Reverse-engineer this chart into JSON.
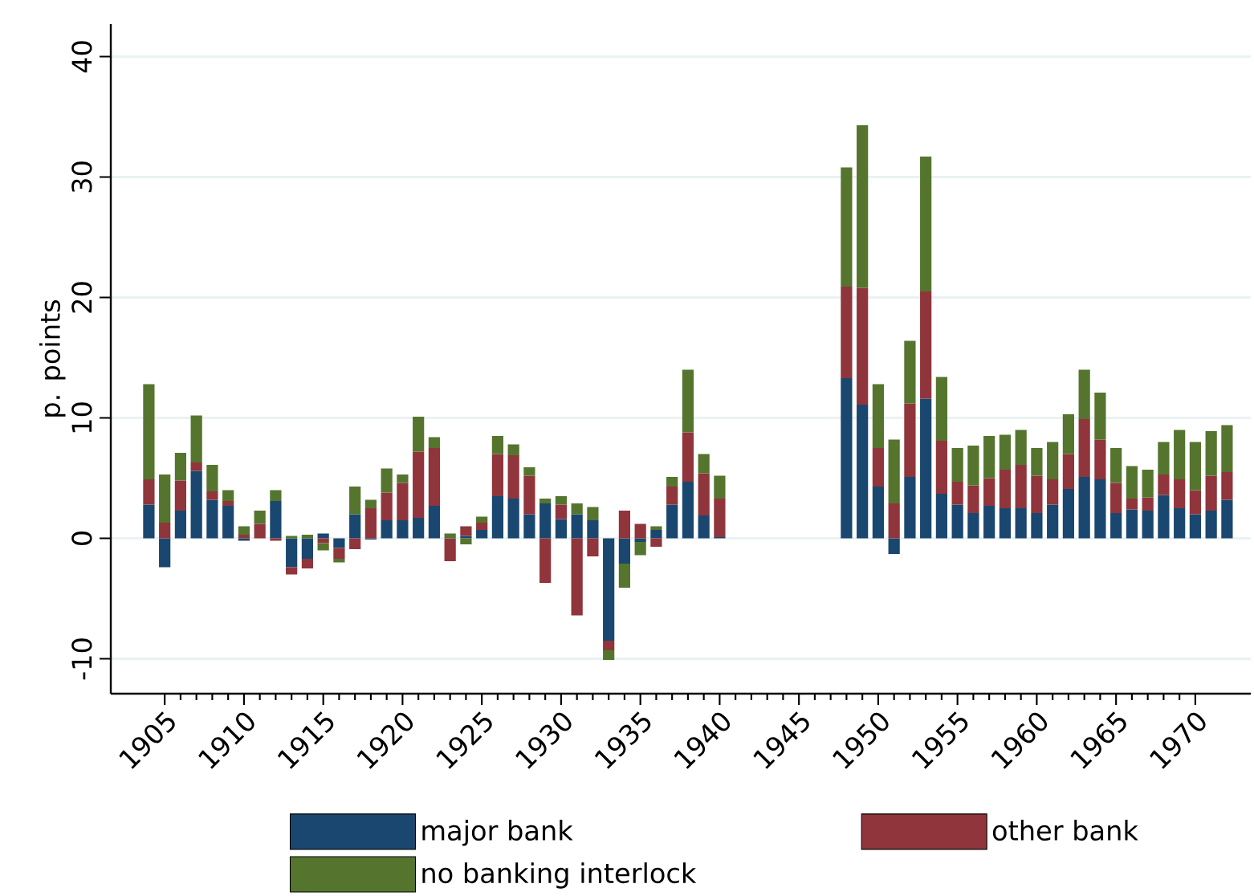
{
  "chart_data": {
    "type": "bar",
    "stacked": true,
    "ylabel": "p. points",
    "x": [
      1904,
      1905,
      1906,
      1907,
      1908,
      1909,
      1910,
      1911,
      1912,
      1913,
      1914,
      1915,
      1916,
      1917,
      1918,
      1919,
      1920,
      1921,
      1922,
      1923,
      1924,
      1925,
      1926,
      1927,
      1928,
      1929,
      1930,
      1931,
      1932,
      1933,
      1934,
      1935,
      1936,
      1937,
      1938,
      1939,
      1940,
      1948,
      1949,
      1950,
      1951,
      1952,
      1953,
      1954,
      1955,
      1956,
      1957,
      1958,
      1959,
      1960,
      1961,
      1962,
      1963,
      1964,
      1965,
      1966,
      1967,
      1968,
      1969,
      1970,
      1971,
      1972
    ],
    "series": [
      {
        "name": "major bank",
        "color": "#1a476f",
        "values": [
          2.8,
          -2.4,
          2.3,
          5.6,
          3.2,
          2.7,
          -0.2,
          0,
          3.1,
          -2.4,
          -1.7,
          0.4,
          -0.8,
          2.0,
          -0.1,
          1.5,
          1.5,
          1.7,
          2.7,
          0,
          0.2,
          0.7,
          3.5,
          3.3,
          2.0,
          2.9,
          1.6,
          2.0,
          1.5,
          -8.5,
          -2.1,
          -0.3,
          0.7,
          2.8,
          4.7,
          1.9,
          0.1,
          13.3,
          11.1,
          4.3,
          -1.3,
          5.1,
          11.6,
          3.7,
          2.8,
          2.1,
          2.7,
          2.5,
          2.5,
          2.1,
          2.8,
          4.1,
          5.1,
          4.9,
          2.1,
          2.4,
          2.3,
          3.6,
          2.5,
          2.0,
          2.3,
          3.2
        ]
      },
      {
        "name": "other bank",
        "color": "#90353b",
        "values": [
          2.1,
          1.3,
          2.5,
          0.7,
          0.7,
          0.4,
          0.3,
          1.2,
          -0.2,
          -0.6,
          -0.8,
          -0.4,
          -0.9,
          -0.9,
          2.5,
          2.3,
          3.1,
          5.5,
          4.8,
          -1.9,
          0.8,
          0.6,
          3.5,
          3.6,
          3.2,
          -3.7,
          1.2,
          -6.4,
          -1.5,
          -0.8,
          2.3,
          1.2,
          -0.7,
          1.5,
          4.1,
          3.5,
          3.2,
          7.6,
          9.7,
          3.2,
          2.9,
          6.1,
          8.9,
          4.4,
          1.9,
          2.3,
          2.3,
          3.2,
          3.6,
          3.1,
          2.1,
          2.9,
          4.8,
          3.3,
          2.5,
          0.9,
          1.1,
          1.7,
          2.4,
          2.0,
          2.9,
          2.3
        ]
      },
      {
        "name": "no banking interlock",
        "color": "#55752f",
        "values": [
          7.9,
          4.0,
          2.3,
          3.9,
          2.2,
          0.9,
          0.7,
          1.1,
          0.9,
          0.2,
          0.3,
          -0.6,
          -0.3,
          2.3,
          0.7,
          2.0,
          0.7,
          2.9,
          0.9,
          0.4,
          -0.5,
          0.5,
          1.5,
          0.9,
          0.7,
          0.4,
          0.7,
          0.9,
          1.1,
          -0.8,
          -2.0,
          -1.1,
          0.3,
          0.8,
          5.2,
          1.6,
          1.9,
          9.9,
          13.5,
          5.3,
          5.3,
          5.2,
          11.2,
          5.3,
          2.8,
          3.3,
          3.5,
          2.9,
          2.9,
          2.3,
          3.1,
          3.3,
          4.1,
          3.9,
          2.9,
          2.7,
          2.3,
          2.7,
          4.1,
          4.0,
          3.7,
          3.9
        ]
      }
    ],
    "xlim": [
      1901.6,
      1973.5
    ],
    "xticks": [
      1905,
      1910,
      1915,
      1920,
      1925,
      1930,
      1935,
      1940,
      1945,
      1950,
      1955,
      1960,
      1965,
      1970
    ],
    "ylim": [
      -12.9,
      42.7
    ],
    "yticks": [
      -10,
      0,
      10,
      20,
      30,
      40
    ],
    "grid": "y",
    "legend": "bottom"
  }
}
